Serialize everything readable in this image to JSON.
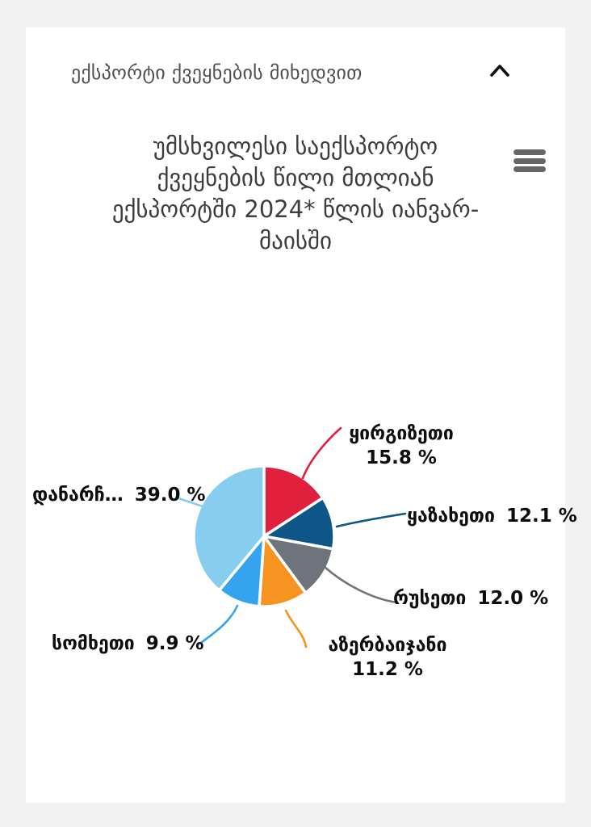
{
  "page": {
    "background_color": "#f2f2f2",
    "card_background_color": "#ffffff"
  },
  "accordion": {
    "title": "ექსპორტი ქვეყნების მიხედვით",
    "state": "expanded",
    "collapse_icon": "chevron-up-icon"
  },
  "chart": {
    "title_display": "უმსხვილესი საექსპორტო\nქვეყნების წილი მთლიან\nექსპორტში 2024* წლის იანვარ-\nმაისში",
    "menu_icon": "hamburger-menu-icon",
    "menu_icon_color": "#666666"
  },
  "chart_data": {
    "type": "pie",
    "title": "უმსხვილესი საექსპორტო ქვეყნების წილი მთლიან ექსპორტში 2024* წლის იანვარ-მაისში",
    "unit": "%",
    "start_angle_deg": 0,
    "direction": "clockwise",
    "slice_border_color": "#ffffff",
    "slices": [
      {
        "label": "ყირგიზეთი",
        "value": 15.8,
        "percent_text": "15.8 %",
        "color": "#e0203c"
      },
      {
        "label": "ყაზახეთი",
        "value": 12.1,
        "percent_text": "12.1 %",
        "color": "#0e5687"
      },
      {
        "label": "რუსეთი",
        "value": 12.0,
        "percent_text": "12.0 %",
        "color": "#6f747c"
      },
      {
        "label": "აზერბაიჯანი",
        "value": 11.2,
        "percent_text": "11.2 %",
        "color": "#f79321"
      },
      {
        "label": "სომხეთი",
        "value": 9.9,
        "percent_text": "9.9 %",
        "color": "#35a3f0"
      },
      {
        "label": "დანარჩ…",
        "value": 39.0,
        "percent_text": "39.0 %",
        "color": "#87cdf0"
      }
    ]
  }
}
